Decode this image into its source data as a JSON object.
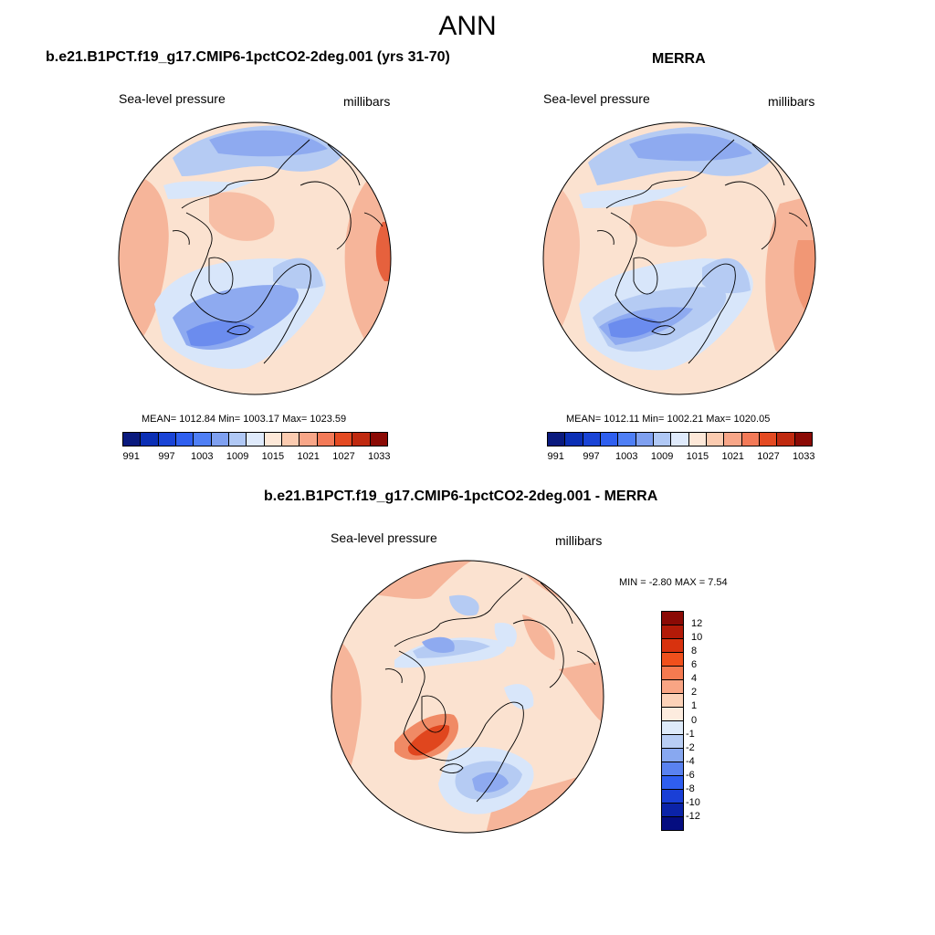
{
  "title": "ANN",
  "panels": [
    {
      "title": "b.e21.B1PCT.f19_g17.CMIP6-1pctCO2-2deg.001 (yrs 31-70)",
      "left_label": "Sea-level pressure",
      "right_label": "millibars",
      "stats": "MEAN= 1012.84  Min= 1003.17  Max= 1023.59"
    },
    {
      "title": "MERRA",
      "left_label": "Sea-level pressure",
      "right_label": "millibars",
      "stats": "MEAN= 1012.11  Min= 1002.21  Max= 1020.05"
    },
    {
      "title": "b.e21.B1PCT.f19_g17.CMIP6-1pctCO2-2deg.001 - MERRA",
      "left_label": "Sea-level pressure",
      "right_label": "millibars",
      "stats": "MIN =  -2.80 MAX =   7.54"
    }
  ],
  "slp_colorbar": {
    "colors": [
      "#0a1a7e",
      "#0b2fb5",
      "#1a44d6",
      "#2f5fef",
      "#4f7ff5",
      "#7fa0f0",
      "#b0c8f5",
      "#dfeafb",
      "#fde8d8",
      "#fbcbb0",
      "#f8a688",
      "#f37a58",
      "#e44a22",
      "#c02a10",
      "#8b0a05"
    ],
    "labels": [
      "991",
      "997",
      "1003",
      "1009",
      "1015",
      "1021",
      "1027",
      "1033"
    ]
  },
  "diff_colorbar": {
    "colors": [
      "#8b0a05",
      "#b21a08",
      "#d8320e",
      "#f0501c",
      "#f57a50",
      "#f9a584",
      "#fcd2b8",
      "#fdecdf",
      "#deeaf9",
      "#b8cdf4",
      "#88a8f0",
      "#5a82f0",
      "#2f5ef0",
      "#1a3fd6",
      "#0b23a8",
      "#050d80"
    ],
    "labels": [
      "12",
      "10",
      "8",
      "6",
      "4",
      "2",
      "1",
      "0",
      "-1",
      "-2",
      "-4",
      "-6",
      "-8",
      "-10",
      "-12"
    ]
  },
  "map_colors": {
    "peach": "#fbe2d0",
    "salmon": "#f6b59a",
    "orange": "#f08a65",
    "red": "#e0461e",
    "lightblue": "#d8e6fa",
    "blue1": "#b5cbf3",
    "blue2": "#8eaaf0",
    "blue3": "#6b8cee"
  }
}
